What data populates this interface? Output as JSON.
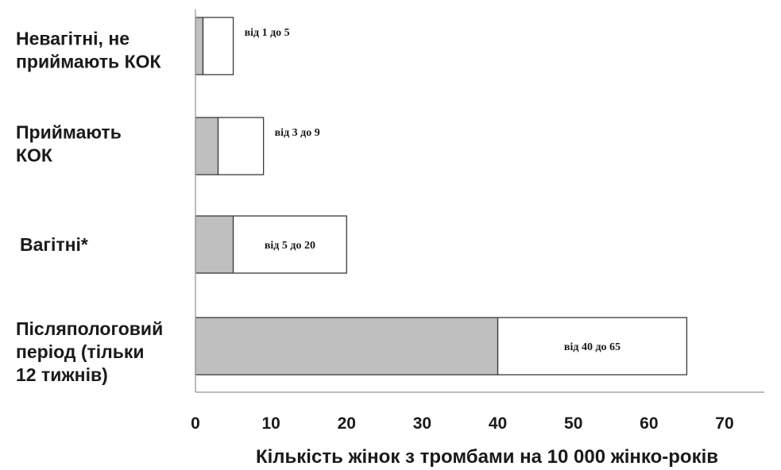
{
  "chart_data": {
    "type": "bar",
    "orientation": "horizontal",
    "stacked": true,
    "categories": [
      [
        "Невагітні, не",
        "приймають КОК"
      ],
      [
        "Приймають",
        "КОК"
      ],
      [
        "Вагітні*"
      ],
      [
        "Післяпологовий",
        "період (тільки",
        "12 тижнів)"
      ]
    ],
    "series": [
      {
        "values": [
          1,
          3,
          5,
          40
        ],
        "color": "#bfbfbf"
      },
      {
        "values": [
          4,
          6,
          15,
          25
        ],
        "color": "#ffffff"
      }
    ],
    "ranges": [
      [
        1,
        5
      ],
      [
        3,
        9
      ],
      [
        5,
        20
      ],
      [
        40,
        65
      ]
    ],
    "range_labels": [
      "від 1 до 5",
      "від 3 до 9",
      "від 5 до 20",
      "від 40 до 65"
    ],
    "xlabel": "Кількість жінок з тромбами на 10 000 жінко-років",
    "xlim": [
      0,
      70
    ],
    "xticks": [
      0,
      10,
      20,
      30,
      40,
      50,
      60,
      70
    ],
    "grid": false
  }
}
